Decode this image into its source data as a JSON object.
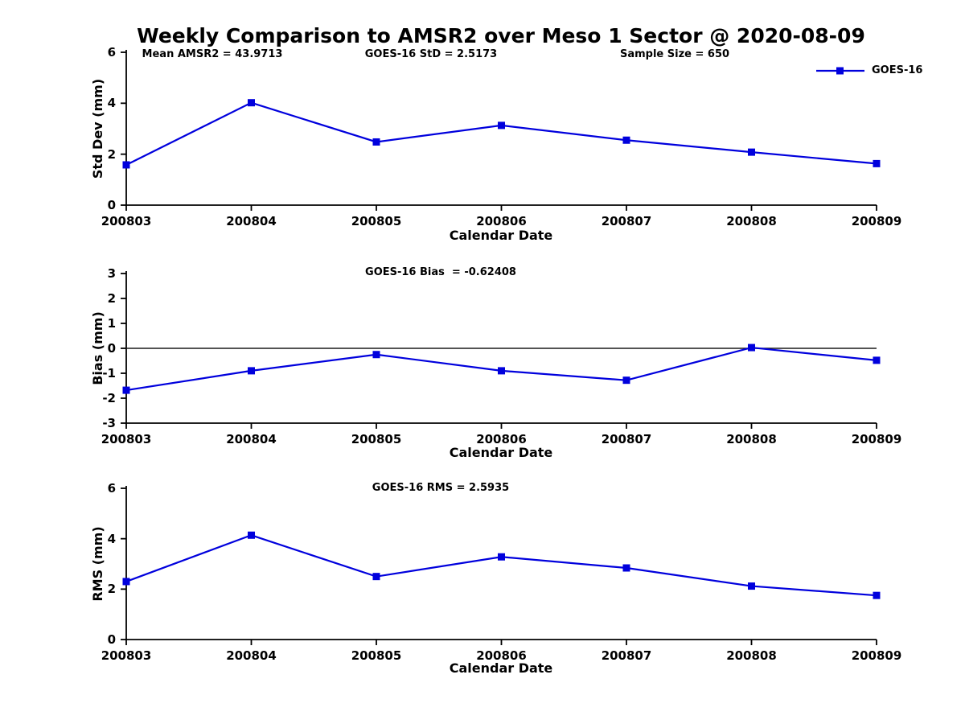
{
  "title": "Weekly Comparison to AMSR2 over Meso 1 Sector @ 2020-08-09",
  "legend": {
    "label": "GOES-16"
  },
  "xlabel": "Calendar Date",
  "colors": {
    "line": "#0000dd",
    "marker": "#0000dd",
    "axis": "#000000",
    "zero_line": "#1a1a1a",
    "text": "#000000",
    "background": "#ffffff"
  },
  "chart_data": [
    {
      "type": "line",
      "id": "stddev",
      "title": "",
      "ylabel": "Std Dev (mm)",
      "xlabel": "Calendar Date",
      "annotations": [
        "Mean AMSR2 = 43.9713",
        "GOES-16 StD = 2.5173",
        "Sample Size = 650"
      ],
      "categories": [
        "200803",
        "200804",
        "200805",
        "200806",
        "200807",
        "200808",
        "200809"
      ],
      "series": [
        {
          "name": "GOES-16",
          "values": [
            1.58,
            4.02,
            2.48,
            3.13,
            2.55,
            2.08,
            1.63
          ]
        }
      ],
      "ylim": [
        0,
        6
      ],
      "yticks": [
        0,
        2,
        4,
        6
      ],
      "zero_line": false,
      "grid": false,
      "legend_position": "outside-upper-right",
      "marker": "square"
    },
    {
      "type": "line",
      "id": "bias",
      "title": "",
      "ylabel": "Bias (mm)",
      "xlabel": "Calendar Date",
      "annotations": [
        "GOES-16 Bias  = -0.62408"
      ],
      "categories": [
        "200803",
        "200804",
        "200805",
        "200806",
        "200807",
        "200808",
        "200809"
      ],
      "series": [
        {
          "name": "GOES-16",
          "values": [
            -1.68,
            -0.9,
            -0.25,
            -0.9,
            -1.28,
            0.03,
            -0.48
          ]
        }
      ],
      "ylim": [
        -3,
        3
      ],
      "yticks": [
        -3,
        -2,
        -1,
        0,
        1,
        2,
        3
      ],
      "zero_line": true,
      "grid": false,
      "marker": "square"
    },
    {
      "type": "line",
      "id": "rms",
      "title": "",
      "ylabel": "RMS (mm)",
      "xlabel": "Calendar Date",
      "annotations": [
        "GOES-16 RMS = 2.5935"
      ],
      "categories": [
        "200803",
        "200804",
        "200805",
        "200806",
        "200807",
        "200808",
        "200809"
      ],
      "series": [
        {
          "name": "GOES-16",
          "values": [
            2.3,
            4.14,
            2.5,
            3.28,
            2.84,
            2.12,
            1.75
          ]
        }
      ],
      "ylim": [
        0,
        6
      ],
      "yticks": [
        0,
        2,
        4,
        6
      ],
      "zero_line": false,
      "grid": false,
      "marker": "square"
    }
  ]
}
